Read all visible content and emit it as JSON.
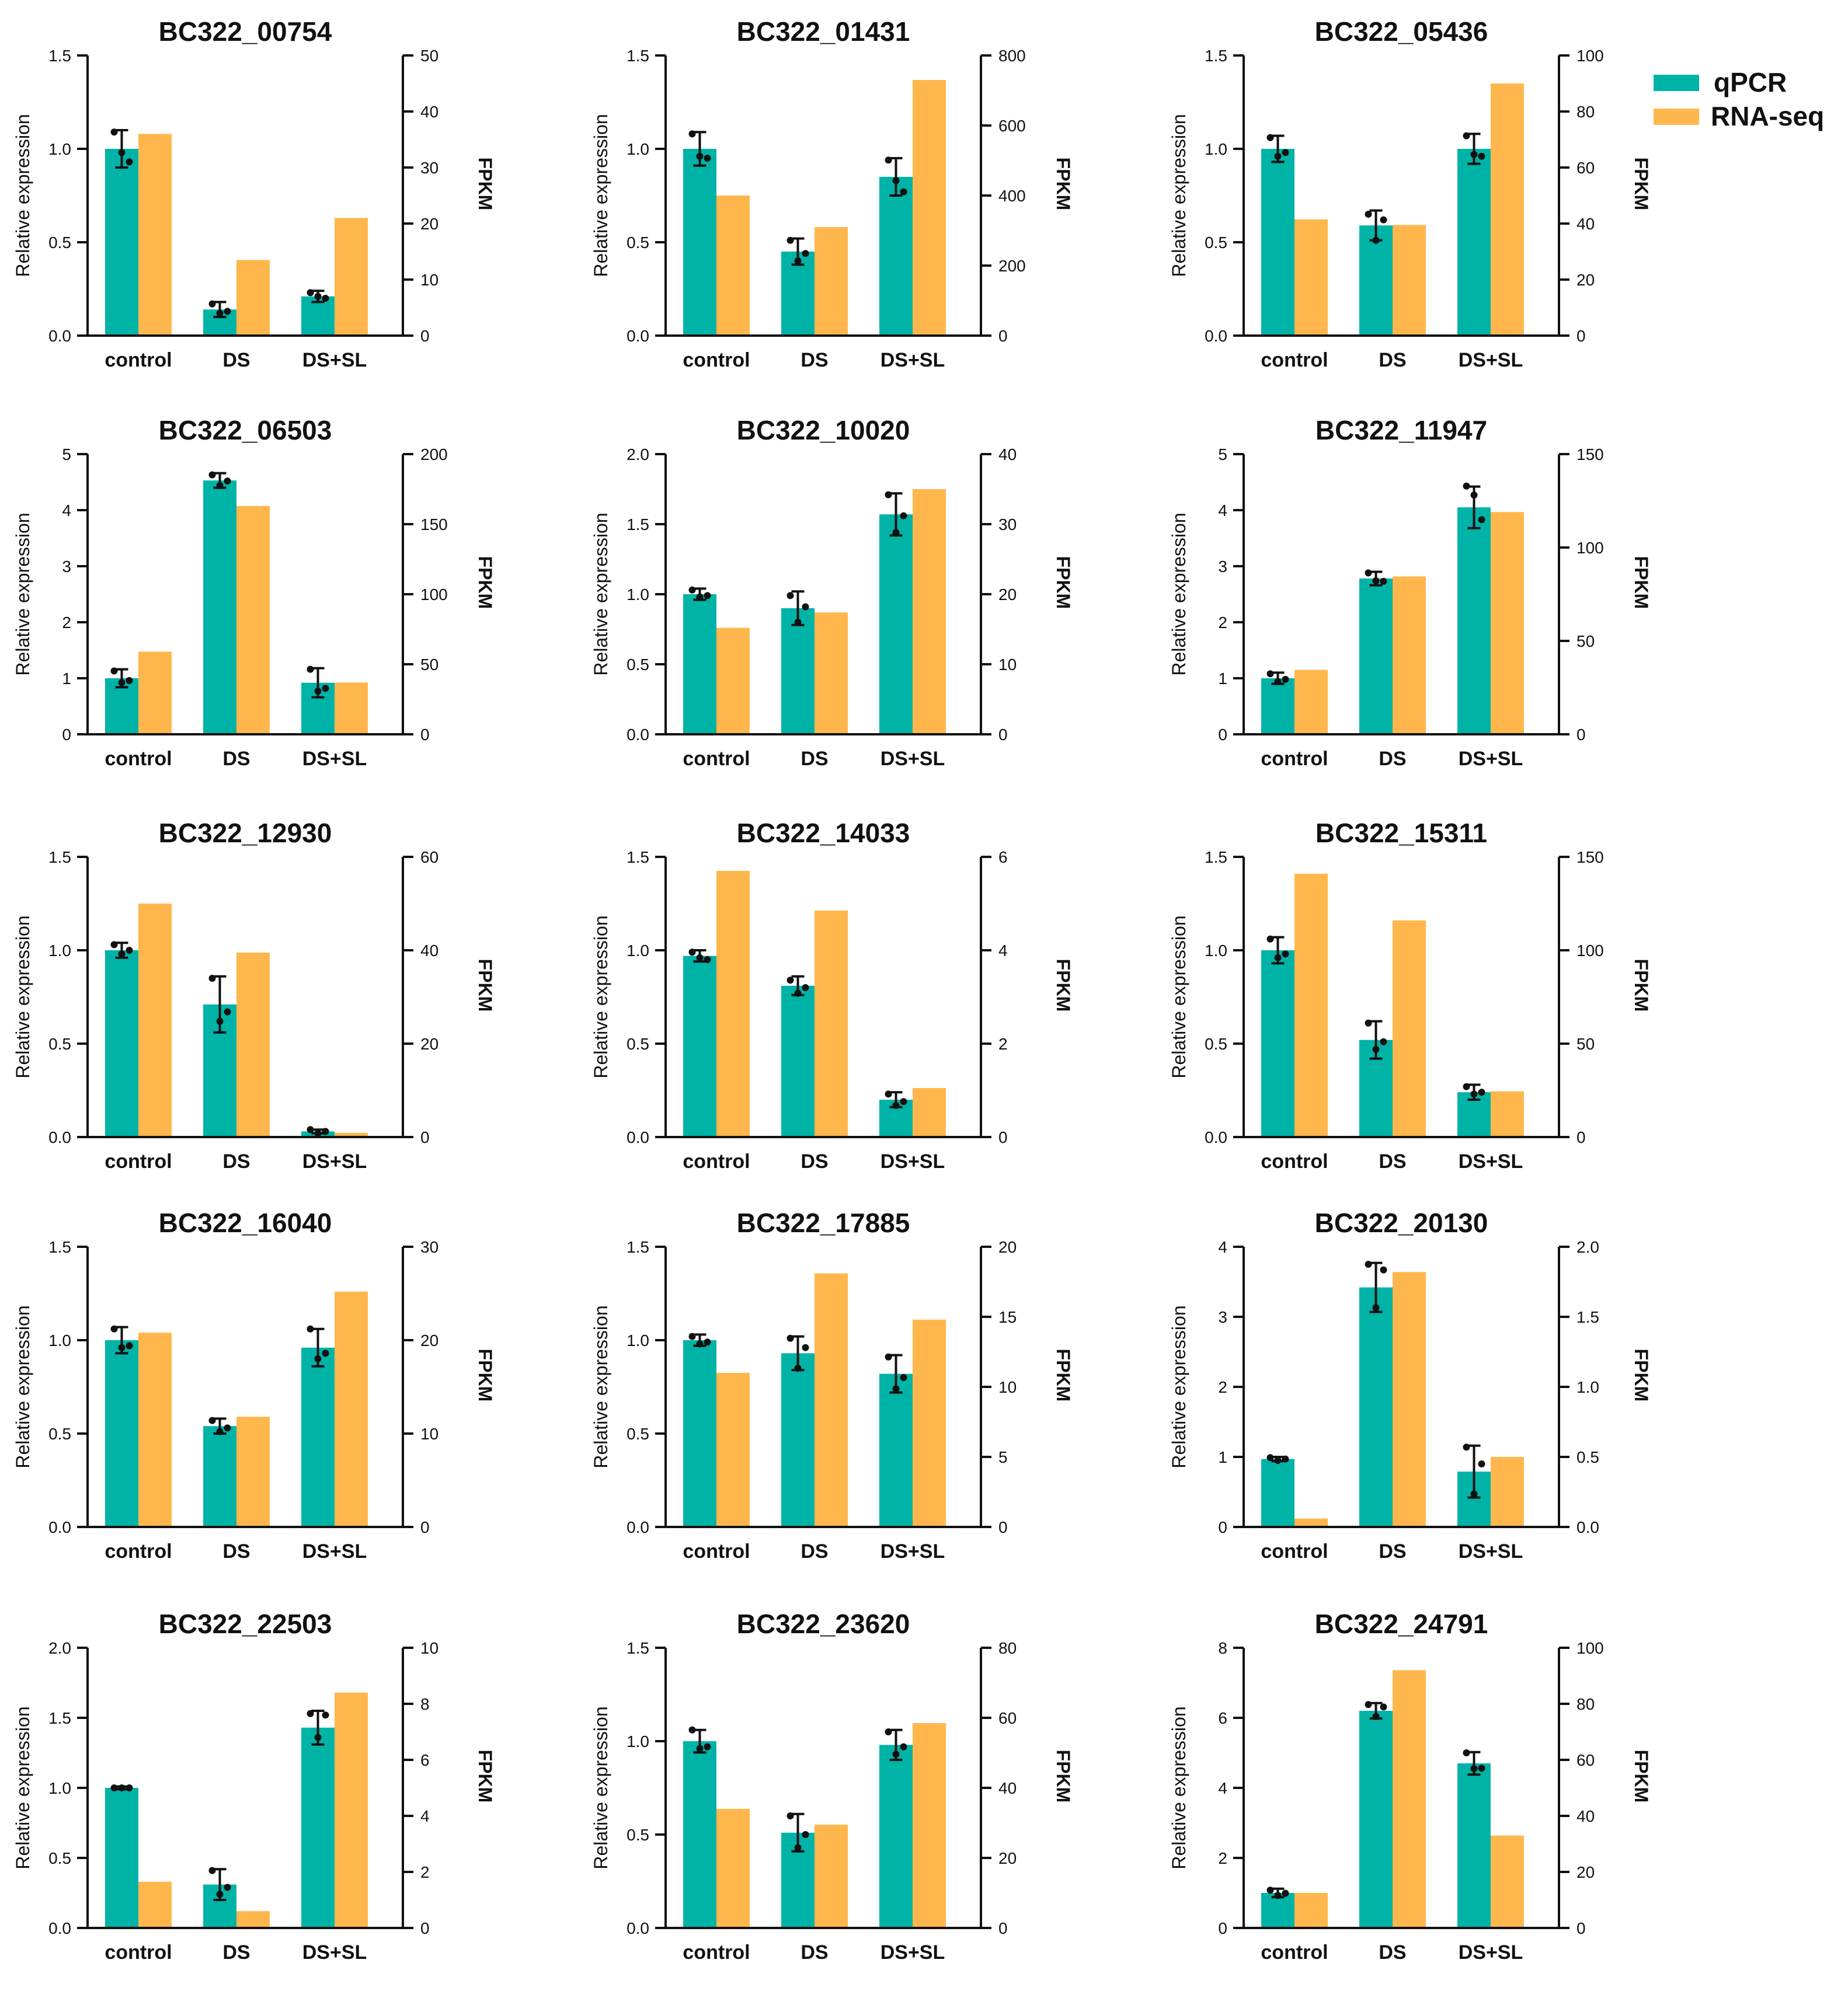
{
  "colors": {
    "qpcr": "#00b3a7",
    "rnaseq": "#ffb74d",
    "axis": "#111111"
  },
  "legend": {
    "placement": "top-right",
    "items": [
      "qPCR",
      "RNA-seq"
    ]
  },
  "chart_data": [
    {
      "type": "bar",
      "title": "BC322_00754",
      "categories": [
        "control",
        "DS",
        "DS+SL"
      ],
      "ylabel": "Relative expression",
      "y2label": "FPKM",
      "ylim": [
        0,
        1.5
      ],
      "yticks": [
        "0.0",
        "0.5",
        "1.0",
        "1.5"
      ],
      "y2lim": [
        0,
        50
      ],
      "y2ticks": [
        "0",
        "10",
        "20",
        "30",
        "40",
        "50"
      ],
      "series": [
        {
          "name": "qPCR",
          "axis": "left",
          "values": [
            1.0,
            0.14,
            0.21
          ],
          "errors": [
            0.1,
            0.04,
            0.03
          ],
          "points": [
            [
              1.09,
              0.98,
              0.93
            ],
            [
              0.17,
              0.12,
              0.13
            ],
            [
              0.23,
              0.21,
              0.2
            ]
          ]
        },
        {
          "name": "RNA-seq",
          "axis": "right",
          "values": [
            36,
            13.5,
            21
          ]
        }
      ]
    },
    {
      "type": "bar",
      "title": "BC322_01431",
      "categories": [
        "control",
        "DS",
        "DS+SL"
      ],
      "ylabel": "Relative expression",
      "y2label": "FPKM",
      "ylim": [
        0,
        1.5
      ],
      "yticks": [
        "0.0",
        "0.5",
        "1.0",
        "1.5"
      ],
      "y2lim": [
        0,
        800
      ],
      "y2ticks": [
        "0",
        "200",
        "400",
        "600",
        "800"
      ],
      "series": [
        {
          "name": "qPCR",
          "axis": "left",
          "values": [
            1.0,
            0.45,
            0.85
          ],
          "errors": [
            0.09,
            0.07,
            0.1
          ],
          "points": [
            [
              1.08,
              0.96,
              0.95
            ],
            [
              0.51,
              0.4,
              0.44
            ],
            [
              0.94,
              0.83,
              0.77
            ]
          ]
        },
        {
          "name": "RNA-seq",
          "axis": "right",
          "values": [
            400,
            310,
            730
          ]
        }
      ]
    },
    {
      "type": "bar",
      "title": "BC322_05436",
      "categories": [
        "control",
        "DS",
        "DS+SL"
      ],
      "ylabel": "Relative expression",
      "y2label": "FPKM",
      "ylim": [
        0,
        1.5
      ],
      "yticks": [
        "0.0",
        "0.5",
        "1.0",
        "1.5"
      ],
      "y2lim": [
        0,
        100
      ],
      "y2ticks": [
        "0",
        "20",
        "40",
        "60",
        "80",
        "100"
      ],
      "series": [
        {
          "name": "qPCR",
          "axis": "left",
          "values": [
            1.0,
            0.59,
            1.0
          ],
          "errors": [
            0.07,
            0.08,
            0.08
          ],
          "points": [
            [
              1.06,
              0.96,
              0.98
            ],
            [
              0.65,
              0.51,
              0.62
            ],
            [
              1.07,
              0.97,
              0.96
            ]
          ]
        },
        {
          "name": "RNA-seq",
          "axis": "right",
          "values": [
            41.5,
            39.5,
            90
          ]
        }
      ]
    },
    {
      "type": "bar",
      "title": "BC322_06503",
      "categories": [
        "control",
        "DS",
        "DS+SL"
      ],
      "ylabel": "Relative expression",
      "y2label": "FPKM",
      "ylim": [
        0,
        5
      ],
      "yticks": [
        "0",
        "1",
        "2",
        "3",
        "4",
        "5"
      ],
      "y2lim": [
        0,
        200
      ],
      "y2ticks": [
        "0",
        "50",
        "100",
        "150",
        "200"
      ],
      "series": [
        {
          "name": "qPCR",
          "axis": "left",
          "values": [
            1.0,
            4.53,
            0.92
          ],
          "errors": [
            0.16,
            0.13,
            0.26
          ],
          "points": [
            [
              1.13,
              0.92,
              0.96
            ],
            [
              4.63,
              4.44,
              4.52
            ],
            [
              1.16,
              0.77,
              0.82
            ]
          ]
        },
        {
          "name": "RNA-seq",
          "axis": "right",
          "values": [
            59,
            163,
            37
          ]
        }
      ]
    },
    {
      "type": "bar",
      "title": "BC322_10020",
      "categories": [
        "control",
        "DS",
        "DS+SL"
      ],
      "ylabel": "Relative expression",
      "y2label": "FPKM",
      "ylim": [
        0,
        2.0
      ],
      "yticks": [
        "0.0",
        "0.5",
        "1.0",
        "1.5",
        "2.0"
      ],
      "y2lim": [
        0,
        40
      ],
      "y2ticks": [
        "0",
        "10",
        "20",
        "30",
        "40"
      ],
      "series": [
        {
          "name": "qPCR",
          "axis": "left",
          "values": [
            1.0,
            0.9,
            1.57
          ],
          "errors": [
            0.04,
            0.12,
            0.15
          ],
          "points": [
            [
              1.03,
              0.98,
              0.99
            ],
            [
              0.99,
              0.8,
              0.91
            ],
            [
              1.71,
              1.44,
              1.56
            ]
          ]
        },
        {
          "name": "RNA-seq",
          "axis": "right",
          "values": [
            15.2,
            17.4,
            35
          ]
        }
      ]
    },
    {
      "type": "bar",
      "title": "BC322_11947",
      "categories": [
        "control",
        "DS",
        "DS+SL"
      ],
      "ylabel": "Relative expression",
      "y2label": "FPKM",
      "ylim": [
        0,
        5
      ],
      "yticks": [
        "0",
        "1",
        "2",
        "3",
        "4",
        "5"
      ],
      "y2lim": [
        0,
        150
      ],
      "y2ticks": [
        "0",
        "50",
        "100",
        "150"
      ],
      "series": [
        {
          "name": "qPCR",
          "axis": "left",
          "values": [
            1.0,
            2.78,
            4.05
          ],
          "errors": [
            0.1,
            0.12,
            0.37
          ],
          "points": [
            [
              1.08,
              0.94,
              0.98
            ],
            [
              2.88,
              2.74,
              2.73
            ],
            [
              4.43,
              4.27,
              3.83
            ]
          ]
        },
        {
          "name": "RNA-seq",
          "axis": "right",
          "values": [
            34.5,
            84.5,
            119
          ]
        }
      ]
    },
    {
      "type": "bar",
      "title": "BC322_12930",
      "categories": [
        "control",
        "DS",
        "DS+SL"
      ],
      "ylabel": "Relative expression",
      "y2label": "FPKM",
      "ylim": [
        0,
        1.5
      ],
      "yticks": [
        "0.0",
        "0.5",
        "1.0",
        "1.5"
      ],
      "y2lim": [
        0,
        60
      ],
      "y2ticks": [
        "0",
        "20",
        "40",
        "60"
      ],
      "series": [
        {
          "name": "qPCR",
          "axis": "left",
          "values": [
            1.0,
            0.71,
            0.03
          ],
          "errors": [
            0.04,
            0.15,
            0.01
          ],
          "points": [
            [
              1.03,
              0.98,
              1.0
            ],
            [
              0.85,
              0.62,
              0.67
            ],
            [
              0.04,
              0.02,
              0.03
            ]
          ]
        },
        {
          "name": "RNA-seq",
          "axis": "right",
          "values": [
            50,
            39.5,
            0.9
          ]
        }
      ]
    },
    {
      "type": "bar",
      "title": "BC322_14033",
      "categories": [
        "control",
        "DS",
        "DS+SL"
      ],
      "ylabel": "Relative expression",
      "y2label": "FPKM",
      "ylim": [
        0,
        1.5
      ],
      "yticks": [
        "0.0",
        "0.5",
        "1.0",
        "1.5"
      ],
      "y2lim": [
        0,
        6
      ],
      "y2ticks": [
        "0",
        "2",
        "4",
        "6"
      ],
      "series": [
        {
          "name": "qPCR",
          "axis": "left",
          "values": [
            0.97,
            0.81,
            0.2
          ],
          "errors": [
            0.03,
            0.05,
            0.04
          ],
          "points": [
            [
              0.99,
              0.96,
              0.95
            ],
            [
              0.84,
              0.77,
              0.8
            ],
            [
              0.23,
              0.17,
              0.19
            ]
          ]
        },
        {
          "name": "RNA-seq",
          "axis": "right",
          "values": [
            5.7,
            4.85,
            1.05
          ]
        }
      ]
    },
    {
      "type": "bar",
      "title": "BC322_15311",
      "categories": [
        "control",
        "DS",
        "DS+SL"
      ],
      "ylabel": "Relative expression",
      "y2label": "FPKM",
      "ylim": [
        0,
        1.5
      ],
      "yticks": [
        "0.0",
        "0.5",
        "1.0",
        "1.5"
      ],
      "y2lim": [
        0,
        150
      ],
      "y2ticks": [
        "0",
        "50",
        "100",
        "150"
      ],
      "series": [
        {
          "name": "qPCR",
          "axis": "left",
          "values": [
            1.0,
            0.52,
            0.24
          ],
          "errors": [
            0.07,
            0.1,
            0.04
          ],
          "points": [
            [
              1.06,
              0.96,
              0.98
            ],
            [
              0.61,
              0.47,
              0.51
            ],
            [
              0.27,
              0.23,
              0.24
            ]
          ]
        },
        {
          "name": "RNA-seq",
          "axis": "right",
          "values": [
            141,
            116,
            24.5
          ]
        }
      ]
    },
    {
      "type": "bar",
      "title": "BC322_16040",
      "categories": [
        "control",
        "DS",
        "DS+SL"
      ],
      "ylabel": "Relative expression",
      "y2label": "FPKM",
      "ylim": [
        0,
        1.5
      ],
      "yticks": [
        "0.0",
        "0.5",
        "1.0",
        "1.5"
      ],
      "y2lim": [
        0,
        30
      ],
      "y2ticks": [
        "0",
        "10",
        "20",
        "30"
      ],
      "series": [
        {
          "name": "qPCR",
          "axis": "left",
          "values": [
            1.0,
            0.54,
            0.96
          ],
          "errors": [
            0.07,
            0.04,
            0.1
          ],
          "points": [
            [
              1.06,
              0.96,
              0.97
            ],
            [
              0.57,
              0.51,
              0.53
            ],
            [
              1.06,
              0.9,
              0.93
            ]
          ]
        },
        {
          "name": "RNA-seq",
          "axis": "right",
          "values": [
            20.8,
            11.8,
            25.2
          ]
        }
      ]
    },
    {
      "type": "bar",
      "title": "BC322_17885",
      "categories": [
        "control",
        "DS",
        "DS+SL"
      ],
      "ylabel": "Relative expression",
      "y2label": "FPKM",
      "ylim": [
        0,
        1.5
      ],
      "yticks": [
        "0.0",
        "0.5",
        "1.0",
        "1.5"
      ],
      "y2lim": [
        0,
        20
      ],
      "y2ticks": [
        "0",
        "5",
        "10",
        "15",
        "20"
      ],
      "series": [
        {
          "name": "qPCR",
          "axis": "left",
          "values": [
            1.0,
            0.93,
            0.82
          ],
          "errors": [
            0.03,
            0.09,
            0.1
          ],
          "points": [
            [
              1.02,
              0.98,
              0.99
            ],
            [
              1.01,
              0.85,
              0.96
            ],
            [
              0.91,
              0.74,
              0.8
            ]
          ]
        },
        {
          "name": "RNA-seq",
          "axis": "right",
          "values": [
            11,
            18.1,
            14.8
          ]
        }
      ]
    },
    {
      "type": "bar",
      "title": "BC322_20130",
      "categories": [
        "control",
        "DS",
        "DS+SL"
      ],
      "ylabel": "Relative expression",
      "y2label": "FPKM",
      "ylim": [
        0,
        4
      ],
      "yticks": [
        "0",
        "1",
        "2",
        "3",
        "4"
      ],
      "y2lim": [
        0,
        2.0
      ],
      "y2ticks": [
        "0.0",
        "0.5",
        "1.0",
        "1.5",
        "2.0"
      ],
      "series": [
        {
          "name": "qPCR",
          "axis": "left",
          "values": [
            0.97,
            3.42,
            0.79
          ],
          "errors": [
            0.03,
            0.35,
            0.37
          ],
          "points": [
            [
              0.99,
              0.95,
              0.97
            ],
            [
              3.75,
              3.13,
              3.67
            ],
            [
              1.14,
              0.47,
              0.9
            ]
          ]
        },
        {
          "name": "RNA-seq",
          "axis": "right",
          "values": [
            0.06,
            1.82,
            0.5
          ]
        }
      ]
    },
    {
      "type": "bar",
      "title": "BC322_22503",
      "categories": [
        "control",
        "DS",
        "DS+SL"
      ],
      "ylabel": "Relative expression",
      "y2label": "FPKM",
      "ylim": [
        0,
        2.0
      ],
      "yticks": [
        "0.0",
        "0.5",
        "1.0",
        "1.5",
        "2.0"
      ],
      "y2lim": [
        0,
        10
      ],
      "y2ticks": [
        "0",
        "2",
        "4",
        "6",
        "8",
        "10"
      ],
      "series": [
        {
          "name": "qPCR",
          "axis": "left",
          "values": [
            1.0,
            0.31,
            1.43
          ],
          "errors": [
            0.01,
            0.11,
            0.12
          ],
          "points": [
            [
              1.0,
              1.0,
              1.0
            ],
            [
              0.41,
              0.24,
              0.29
            ],
            [
              1.53,
              1.36,
              1.52
            ]
          ]
        },
        {
          "name": "RNA-seq",
          "axis": "right",
          "values": [
            1.65,
            0.6,
            8.4
          ]
        }
      ]
    },
    {
      "type": "bar",
      "title": "BC322_23620",
      "categories": [
        "control",
        "DS",
        "DS+SL"
      ],
      "ylabel": "Relative expression",
      "y2label": "FPKM",
      "ylim": [
        0,
        1.5
      ],
      "yticks": [
        "0.0",
        "0.5",
        "1.0",
        "1.5"
      ],
      "y2lim": [
        0,
        80
      ],
      "y2ticks": [
        "0",
        "20",
        "40",
        "60",
        "80"
      ],
      "series": [
        {
          "name": "qPCR",
          "axis": "left",
          "values": [
            1.0,
            0.51,
            0.98
          ],
          "errors": [
            0.06,
            0.1,
            0.08
          ],
          "points": [
            [
              1.06,
              0.96,
              0.97
            ],
            [
              0.6,
              0.43,
              0.5
            ],
            [
              1.05,
              0.93,
              0.97
            ]
          ]
        },
        {
          "name": "RNA-seq",
          "axis": "right",
          "values": [
            34,
            29.5,
            58.5
          ]
        }
      ]
    },
    {
      "type": "bar",
      "title": "BC322_24791",
      "categories": [
        "control",
        "DS",
        "DS+SL"
      ],
      "ylabel": "Relative expression",
      "y2label": "FPKM",
      "ylim": [
        0,
        8
      ],
      "yticks": [
        "0",
        "2",
        "4",
        "6",
        "8"
      ],
      "y2lim": [
        0,
        100
      ],
      "y2ticks": [
        "0",
        "20",
        "40",
        "60",
        "80",
        "100"
      ],
      "series": [
        {
          "name": "qPCR",
          "axis": "left",
          "values": [
            1.0,
            6.2,
            4.7
          ],
          "errors": [
            0.12,
            0.22,
            0.32
          ],
          "points": [
            [
              1.08,
              0.93,
              0.99
            ],
            [
              6.38,
              6.04,
              6.31
            ],
            [
              5.0,
              4.55,
              4.56
            ]
          ]
        },
        {
          "name": "RNA-seq",
          "axis": "right",
          "values": [
            12.5,
            92,
            33
          ]
        }
      ]
    }
  ]
}
